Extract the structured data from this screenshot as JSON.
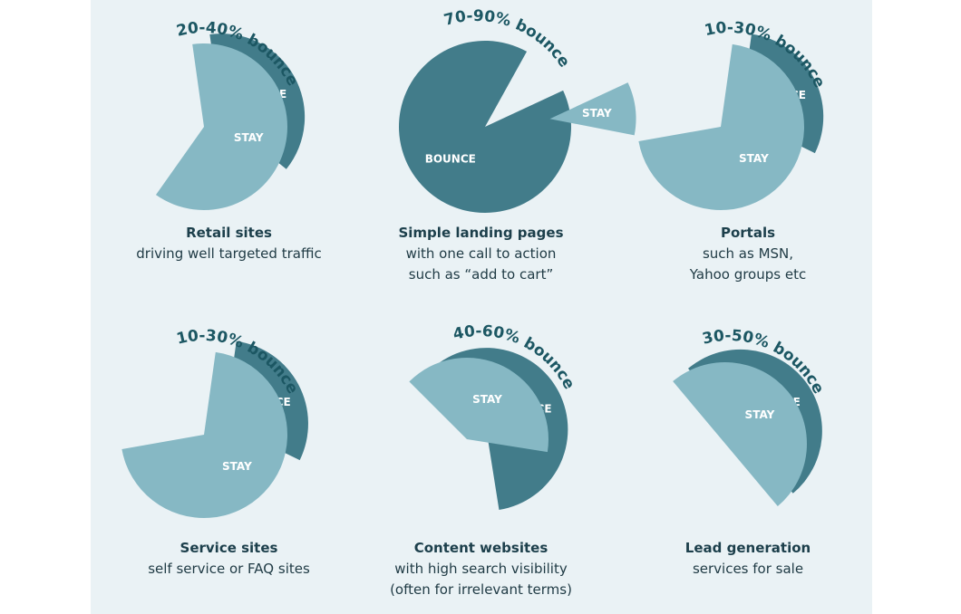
{
  "colors": {
    "background": "#eaf2f5",
    "stay": "#86b8c4",
    "bounce": "#427c8a",
    "label_text": "#ffffff",
    "annotation_text": "#1c5763"
  },
  "slice_labels": {
    "stay": "STAY",
    "bounce": "BOUNCE"
  },
  "chart_data": [
    {
      "type": "pie",
      "title": "Retail sites",
      "annotation": "20-40% bounce",
      "subtitle_lines": [
        "driving well targeted traffic"
      ],
      "slices": [
        {
          "label": "BOUNCE",
          "value": 38,
          "exploded": true
        },
        {
          "label": "STAY",
          "value": 62
        }
      ]
    },
    {
      "type": "pie",
      "title": "Simple landing pages",
      "annotation": "70-90% bounce",
      "subtitle_lines": [
        "with one call to action",
        "such as “add to cart”"
      ],
      "slices": [
        {
          "label": "BOUNCE",
          "value": 90
        },
        {
          "label": "STAY",
          "value": 10,
          "exploded": true
        }
      ]
    },
    {
      "type": "pie",
      "title": "Portals",
      "annotation": "10-30% bounce",
      "subtitle_lines": [
        "such as MSN,",
        "Yahoo groups etc"
      ],
      "slices": [
        {
          "label": "BOUNCE",
          "value": 30,
          "exploded": true
        },
        {
          "label": "STAY",
          "value": 70
        }
      ]
    },
    {
      "type": "pie",
      "title": "Service sites",
      "annotation": "10-30% bounce",
      "subtitle_lines": [
        "self service or FAQ sites"
      ],
      "slices": [
        {
          "label": "BOUNCE",
          "value": 30,
          "exploded": true
        },
        {
          "label": "STAY",
          "value": 70
        }
      ]
    },
    {
      "type": "pie",
      "title": "Content websites",
      "annotation": "40-60% bounce",
      "subtitle_lines": [
        "with high search visibility",
        "(often for irrelevant terms)"
      ],
      "slices": [
        {
          "label": "BOUNCE",
          "value": 60,
          "exploded": true
        },
        {
          "label": "STAY",
          "value": 40
        }
      ]
    },
    {
      "type": "pie",
      "title": "Lead generation",
      "annotation": "30-50% bounce",
      "subtitle_lines": [
        "services for sale"
      ],
      "slices": [
        {
          "label": "BOUNCE",
          "value": 50,
          "exploded": true
        },
        {
          "label": "STAY",
          "value": 50
        }
      ]
    }
  ]
}
